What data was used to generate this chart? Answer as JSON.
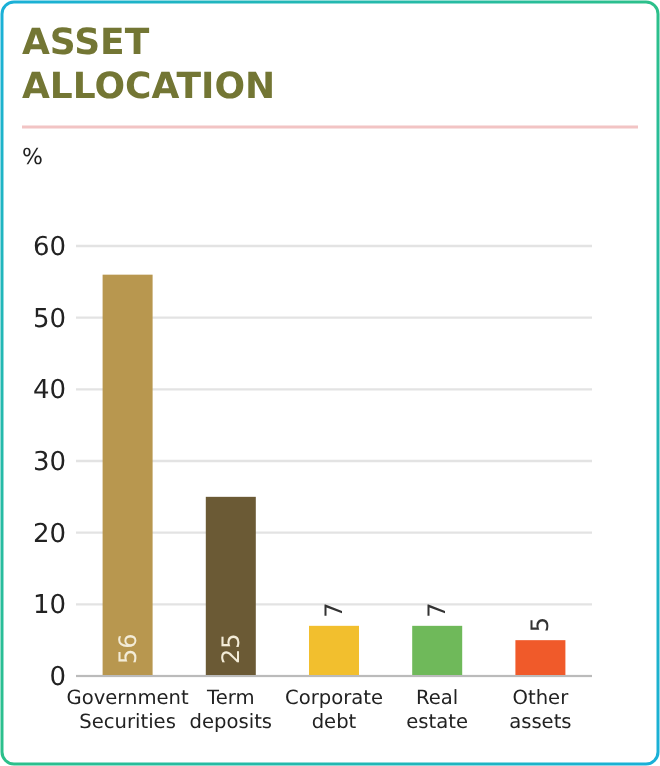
{
  "chart_data": {
    "type": "bar",
    "title": "ASSET ALLOCATION",
    "ylabel": "%",
    "categories": [
      "Government Securities",
      "Term deposits",
      "Corporate debt",
      "Real estate",
      "Other assets"
    ],
    "values": [
      56,
      25,
      7,
      7,
      5
    ],
    "colors": [
      "#b8974f",
      "#6b5a35",
      "#f2bf2e",
      "#6fb95a",
      "#f05a2a"
    ],
    "ylim": [
      0,
      60
    ],
    "yticks": [
      0,
      10,
      20,
      30,
      40,
      50,
      60
    ],
    "grid": "y",
    "data_labels": true
  }
}
